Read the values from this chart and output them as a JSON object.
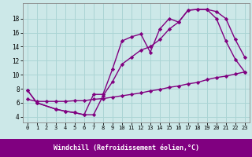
{
  "line1_x": [
    0,
    1,
    3,
    4,
    5,
    6,
    7,
    8,
    9,
    10,
    11,
    12,
    13,
    14,
    15,
    16,
    17,
    18,
    19,
    20,
    21,
    22,
    23
  ],
  "line1_y": [
    7.8,
    6.0,
    5.1,
    4.8,
    4.6,
    4.3,
    7.2,
    7.2,
    10.8,
    14.8,
    15.4,
    15.8,
    13.2,
    16.5,
    18.0,
    17.5,
    19.2,
    19.3,
    19.3,
    18.0,
    14.8,
    12.2,
    10.4
  ],
  "line2_x": [
    0,
    1,
    3,
    4,
    5,
    6,
    7,
    8,
    9,
    10,
    11,
    12,
    13,
    14,
    15,
    16,
    17,
    18,
    19,
    20,
    21,
    22,
    23
  ],
  "line2_y": [
    7.8,
    6.0,
    5.1,
    4.8,
    4.6,
    4.3,
    4.3,
    7.0,
    9.0,
    11.5,
    12.5,
    13.5,
    14.0,
    15.0,
    16.5,
    17.5,
    19.2,
    19.3,
    19.3,
    19.0,
    18.0,
    15.0,
    12.5
  ],
  "line3_x": [
    0,
    1,
    2,
    3,
    4,
    5,
    6,
    7,
    8,
    9,
    10,
    11,
    12,
    13,
    14,
    15,
    16,
    17,
    18,
    19,
    20,
    21,
    22,
    23
  ],
  "line3_y": [
    6.5,
    6.2,
    6.2,
    6.2,
    6.2,
    6.3,
    6.3,
    6.5,
    6.6,
    6.8,
    7.0,
    7.2,
    7.4,
    7.7,
    7.9,
    8.2,
    8.4,
    8.7,
    8.9,
    9.3,
    9.6,
    9.8,
    10.1,
    10.4
  ],
  "color": "#800080",
  "bg_color": "#cce8e8",
  "grid_color": "#aad4d4",
  "xlabel": "Windchill (Refroidissement éolien,°C)",
  "xlabel_bg": "#800080",
  "xlabel_color": "#ffffff",
  "xlim": [
    -0.5,
    23.5
  ],
  "ylim": [
    3.2,
    20.2
  ],
  "xticks": [
    0,
    1,
    2,
    3,
    4,
    5,
    6,
    7,
    8,
    9,
    10,
    11,
    12,
    13,
    14,
    15,
    16,
    17,
    18,
    19,
    20,
    21,
    22,
    23
  ],
  "yticks": [
    4,
    6,
    8,
    10,
    12,
    14,
    16,
    18
  ],
  "marker": "D",
  "markersize": 2.2,
  "linewidth": 1.0
}
